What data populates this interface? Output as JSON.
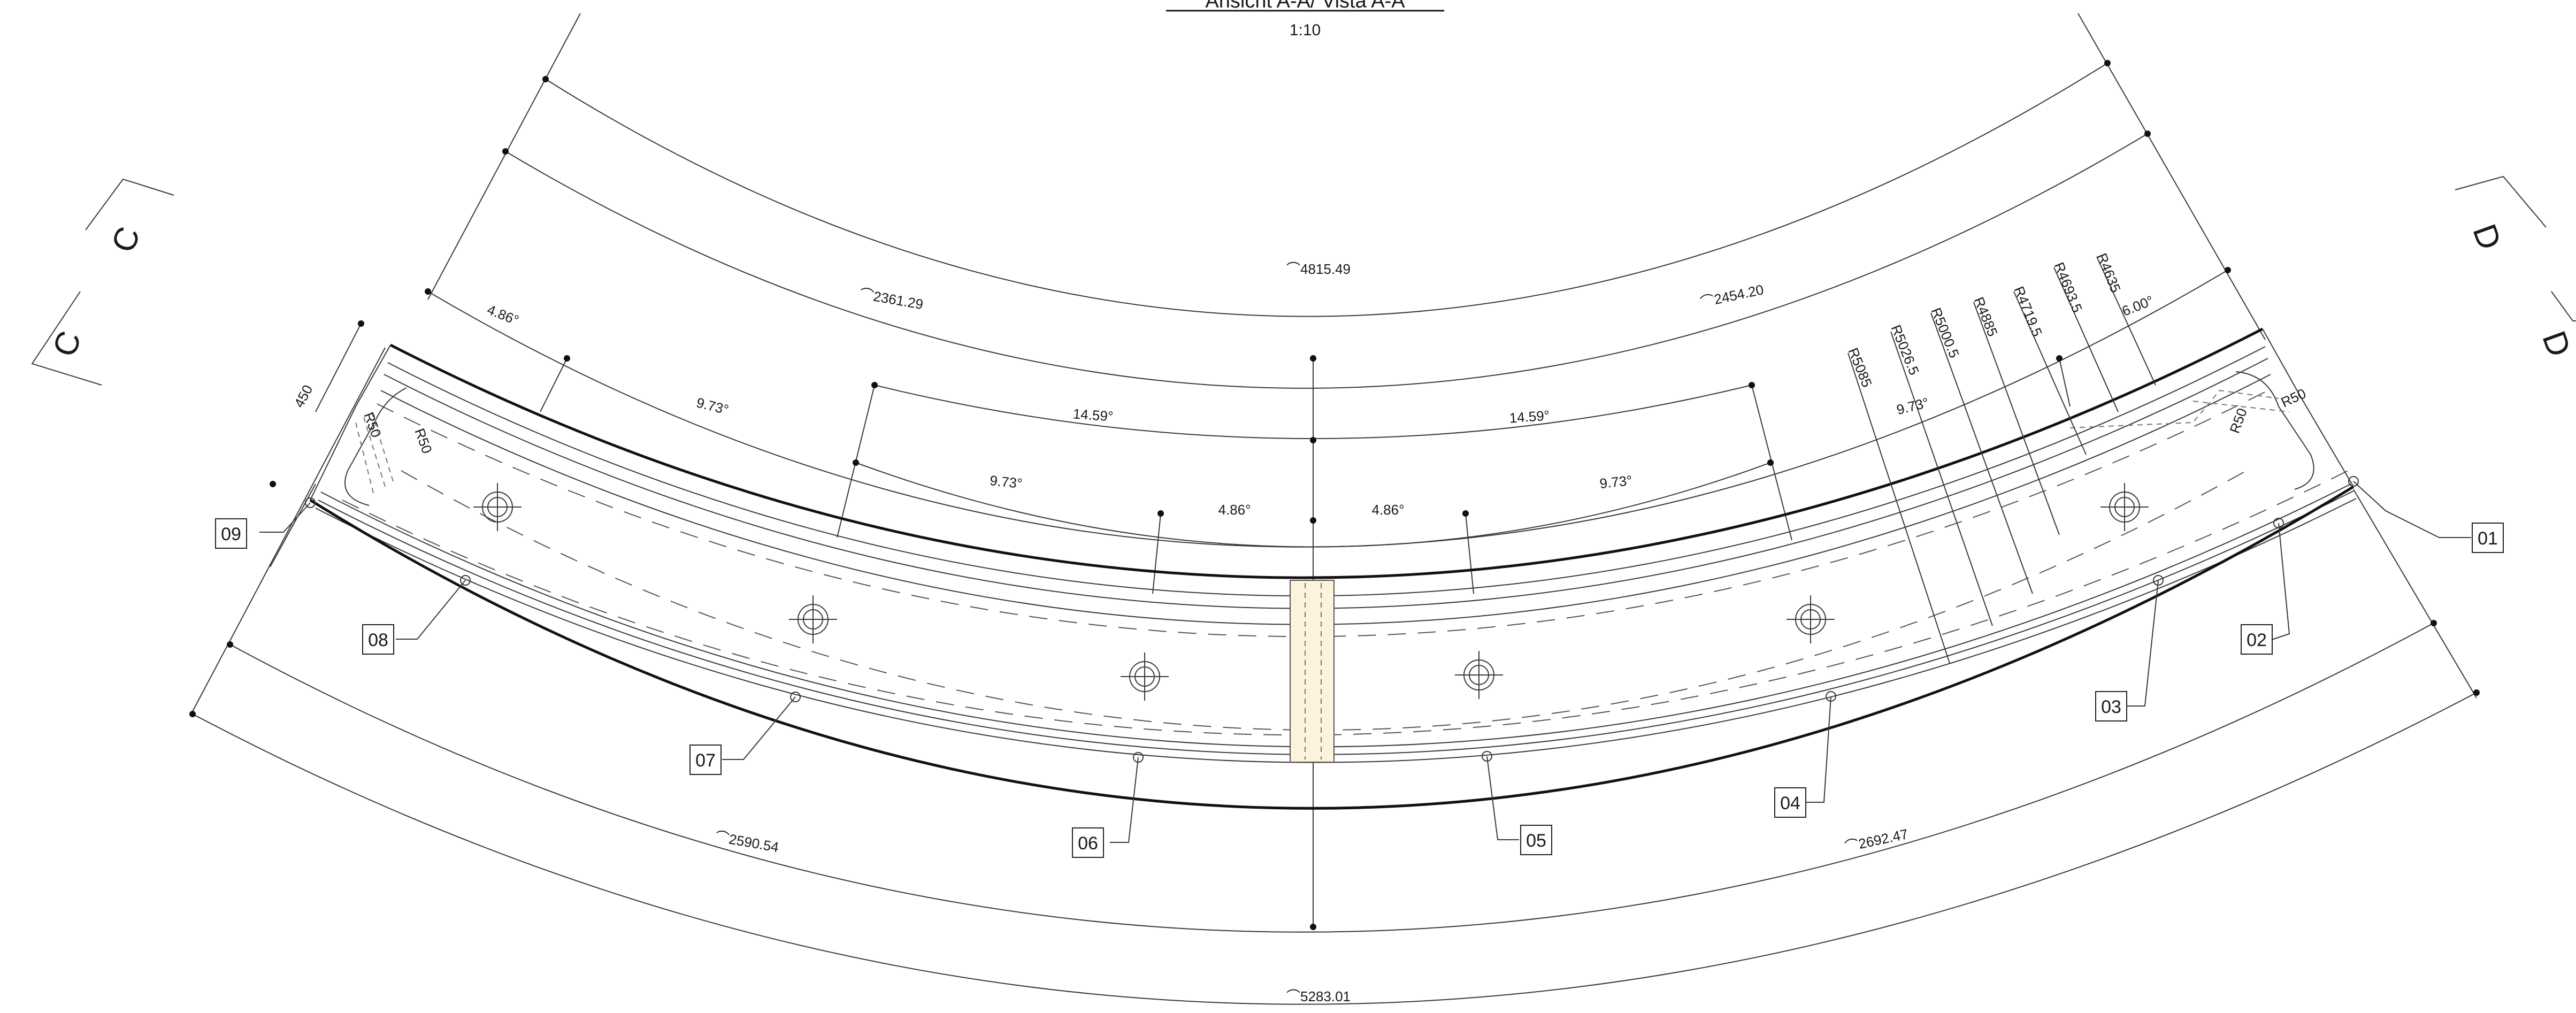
{
  "drawing": {
    "title": "Ansicht A-A/ Vista A-A",
    "scale": "1:10",
    "section_markers": [
      "C",
      "C",
      "D",
      "D"
    ],
    "arc_lengths": {
      "outer_top": "⌒4815.49",
      "left_upper": "⌒2361.29",
      "right_upper": "⌒2454.20",
      "left_lower": "⌒2590.54",
      "right_lower": "⌒2692.47",
      "outer_bottom": "⌒5283.01"
    },
    "angles": {
      "a1": "4.86°",
      "a2": "9.73°",
      "a3": "14.59°",
      "a4": "14.59°",
      "a5": "9.73°",
      "a6": "4.86°",
      "a7": "4.86°",
      "a8": "9.73°",
      "a9": "9.73°",
      "a10": "6.00°"
    },
    "radii": [
      "R5085",
      "R5026.5",
      "R5000.5",
      "R4885",
      "R4719.5",
      "R4693.5",
      "R4635"
    ],
    "edge_radii": {
      "r50_left_top": "R50",
      "r50_left": "R50",
      "r50_right": "R50",
      "r50_right_top": "R50"
    },
    "width_dim": "450",
    "part_tags": [
      "01",
      "02",
      "03",
      "04",
      "05",
      "06",
      "07",
      "08",
      "09"
    ]
  }
}
